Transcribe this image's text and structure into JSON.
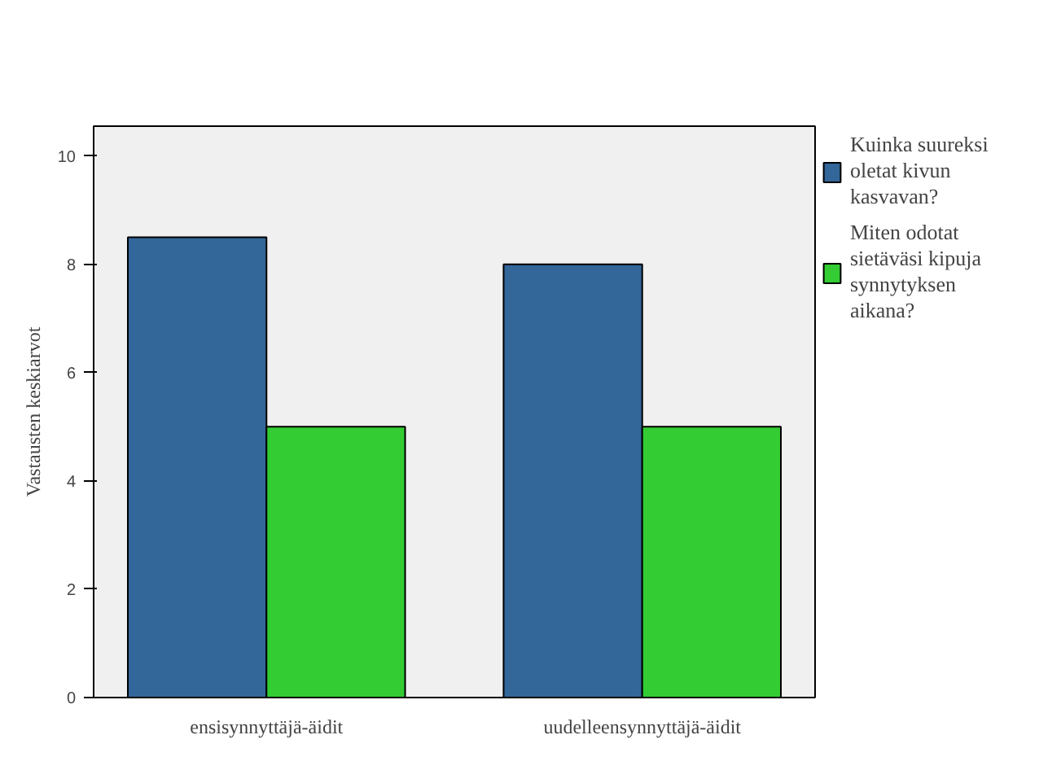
{
  "chart_data": {
    "type": "bar",
    "ylabel": "Vastausten keskiarvot",
    "categories": [
      "ensisynnyttäjä-äidit",
      "uudelleensynnyttäjä-äidit"
    ],
    "series": [
      {
        "name": "Kuinka suureksi oletat kivun kasvavan?",
        "color": "#336699",
        "values": [
          8.5,
          8.0
        ]
      },
      {
        "name": "Miten odotat sietäväsi kipuja synnytyksen aikana?",
        "color": "#33cc33",
        "values": [
          5.0,
          5.0
        ]
      }
    ],
    "ylim": [
      0,
      10.55
    ],
    "yticks": [
      0,
      2,
      4,
      6,
      8,
      10
    ],
    "legend": "right"
  }
}
